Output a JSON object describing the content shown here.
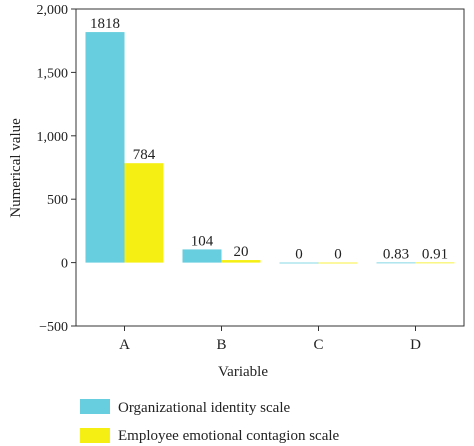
{
  "chart_data": {
    "type": "bar",
    "categories": [
      "A",
      "B",
      "C",
      "D"
    ],
    "series": [
      {
        "name": "Organizational identity scale",
        "values": [
          1818,
          104,
          0,
          0.83
        ],
        "labels": [
          "1818",
          "104",
          "0",
          "0.83"
        ],
        "color": "#66cede"
      },
      {
        "name": "Employee emotional contagion scale",
        "values": [
          784,
          20,
          0,
          0.91
        ],
        "labels": [
          "784",
          "20",
          "0",
          "0.91"
        ],
        "color": "#f5ef14"
      }
    ],
    "xlabel": "Variable",
    "ylabel": "Numerical value",
    "ylim": [
      -500,
      2000
    ],
    "yticks": [
      -500,
      0,
      500,
      1000,
      1500,
      2000
    ],
    "ytick_labels": [
      "−500",
      "0",
      "500",
      "1,000",
      "1,500",
      "2,000"
    ],
    "grid": false,
    "legend_position": "bottom"
  }
}
